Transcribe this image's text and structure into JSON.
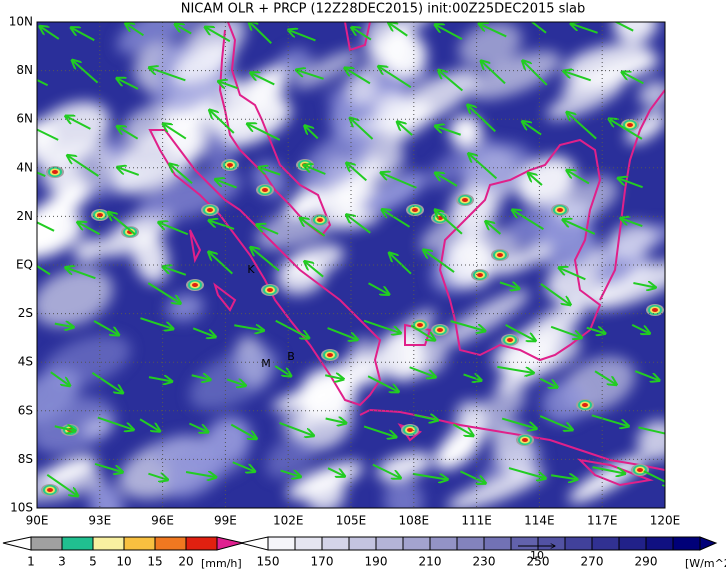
{
  "title": "NICAM OLR + PRCP (12Z28DEC2015) init:00Z25DEC2015 slab",
  "map": {
    "x_labels": [
      "90E",
      "93E",
      "96E",
      "99E",
      "102E",
      "105E",
      "108E",
      "111E",
      "114E",
      "117E",
      "120E"
    ],
    "y_labels": [
      "10N",
      "8N",
      "6N",
      "4N",
      "2N",
      "EQ",
      "2S",
      "4S",
      "6S",
      "8S",
      "10S"
    ],
    "markers": [
      "K",
      "M",
      "B"
    ],
    "vector_reference": "10"
  },
  "legends": {
    "precipitation": {
      "labels": [
        1,
        3,
        5,
        10,
        15,
        20
      ],
      "unit": "[mm/h]"
    },
    "olr": {
      "labels": [
        150,
        170,
        190,
        210,
        230,
        250,
        270,
        290
      ],
      "unit": "[W/m^2]"
    }
  }
}
